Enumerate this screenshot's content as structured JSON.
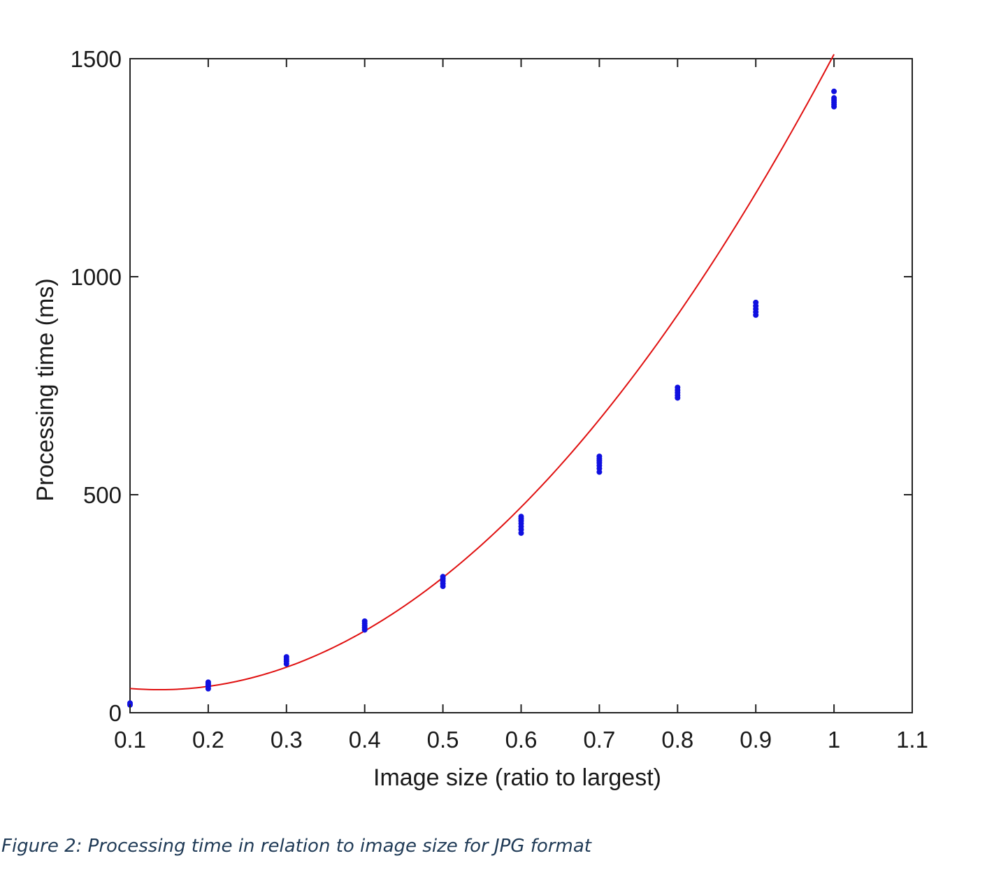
{
  "chart_data": {
    "type": "scatter",
    "title": "",
    "xlabel": "Image size (ratio to largest)",
    "ylabel": "Processing time (ms)",
    "xlim": [
      0.1,
      1.1
    ],
    "ylim": [
      0,
      1500
    ],
    "xticks": [
      0.1,
      0.2,
      0.3,
      0.4,
      0.5,
      0.6,
      0.7,
      0.8,
      0.9,
      1.0,
      1.1
    ],
    "xtick_labels": [
      "0.1",
      "0.2",
      "0.3",
      "0.4",
      "0.5",
      "0.6",
      "0.7",
      "0.8",
      "0.9",
      "1",
      "1.1"
    ],
    "yticks": [
      0,
      500,
      1000,
      1500
    ],
    "ytick_labels": [
      "0",
      "500",
      "1000",
      "1500"
    ],
    "grid": false,
    "legend": "none",
    "colors": {
      "points": "#1010e0",
      "fit": "#e01010",
      "axes": "#222222"
    },
    "series": [
      {
        "kind": "points",
        "x": [
          0.1,
          0.1,
          0.2,
          0.2,
          0.2,
          0.2,
          0.2,
          0.3,
          0.3,
          0.3,
          0.3,
          0.4,
          0.4,
          0.4,
          0.4,
          0.4,
          0.5,
          0.5,
          0.5,
          0.5,
          0.5,
          0.6,
          0.6,
          0.6,
          0.6,
          0.6,
          0.6,
          0.6,
          0.7,
          0.7,
          0.7,
          0.7,
          0.7,
          0.7,
          0.7,
          0.8,
          0.8,
          0.8,
          0.8,
          0.8,
          0.9,
          0.9,
          0.9,
          0.9,
          0.9,
          1.0,
          1.0,
          1.0,
          1.0,
          1.0,
          1.0
        ],
        "y": [
          18,
          22,
          55,
          60,
          63,
          66,
          70,
          112,
          118,
          123,
          128,
          190,
          195,
          200,
          205,
          210,
          290,
          296,
          302,
          307,
          312,
          412,
          420,
          427,
          434,
          440,
          445,
          450,
          552,
          560,
          567,
          573,
          578,
          583,
          588,
          722,
          728,
          734,
          740,
          746,
          912,
          919,
          926,
          933,
          941,
          1390,
          1395,
          1400,
          1405,
          1410,
          1425
        ]
      },
      {
        "kind": "fit",
        "coefficients": [
          1960,
          -540,
          90
        ]
      }
    ]
  },
  "caption": "Figure 2: Processing time in relation to image size for JPG format"
}
